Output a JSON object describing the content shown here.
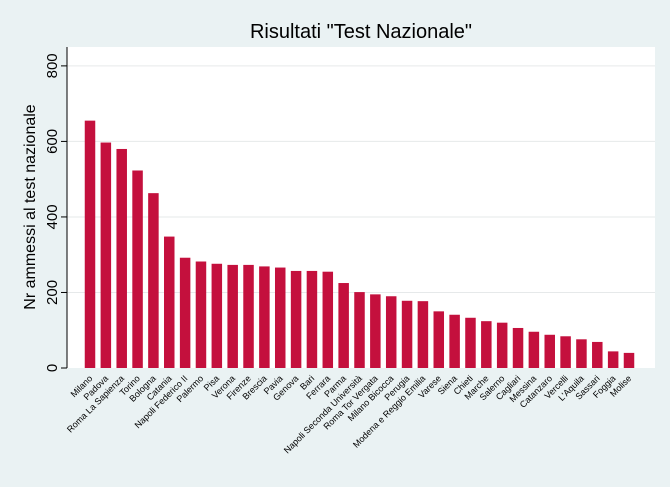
{
  "chart_data": {
    "type": "bar",
    "title": "Risultati \"Test Nazionale\"",
    "xlabel": "",
    "ylabel": "Nr ammessi al test nazionale",
    "ylim": [
      0,
      850
    ],
    "yticks": [
      0,
      200,
      400,
      600,
      800
    ],
    "grid": true,
    "bar_color": "#c4103d",
    "background_color": "#eaf2f3",
    "categories": [
      "Milano",
      "Padova",
      "Roma La Sapienza",
      "Torino",
      "Bologna",
      "Catania",
      "Napoli Federico II",
      "Palermo",
      "Pisa",
      "Verona",
      "Firenze",
      "Brescia",
      "Pavia",
      "Genova",
      "Bari",
      "Ferrara",
      "Parma",
      "Napoli Seconda Università",
      "Roma Tor Vergata",
      "Milano Bicocca",
      "Perugia",
      "Modena e Reggio Emilia",
      "Varese",
      "Siena",
      "Chieti",
      "Marche",
      "Salerno",
      "Cagliari",
      "Messina",
      "Catanzaro",
      "Vercelli",
      "L'Aquila",
      "Sassari",
      "Foggia",
      "Molise"
    ],
    "values": [
      655,
      597,
      580,
      523,
      463,
      348,
      292,
      282,
      276,
      273,
      273,
      269,
      266,
      257,
      257,
      255,
      225,
      201,
      195,
      190,
      178,
      177,
      150,
      141,
      133,
      124,
      120,
      106,
      96,
      88,
      84,
      76,
      69,
      44,
      40
    ]
  }
}
